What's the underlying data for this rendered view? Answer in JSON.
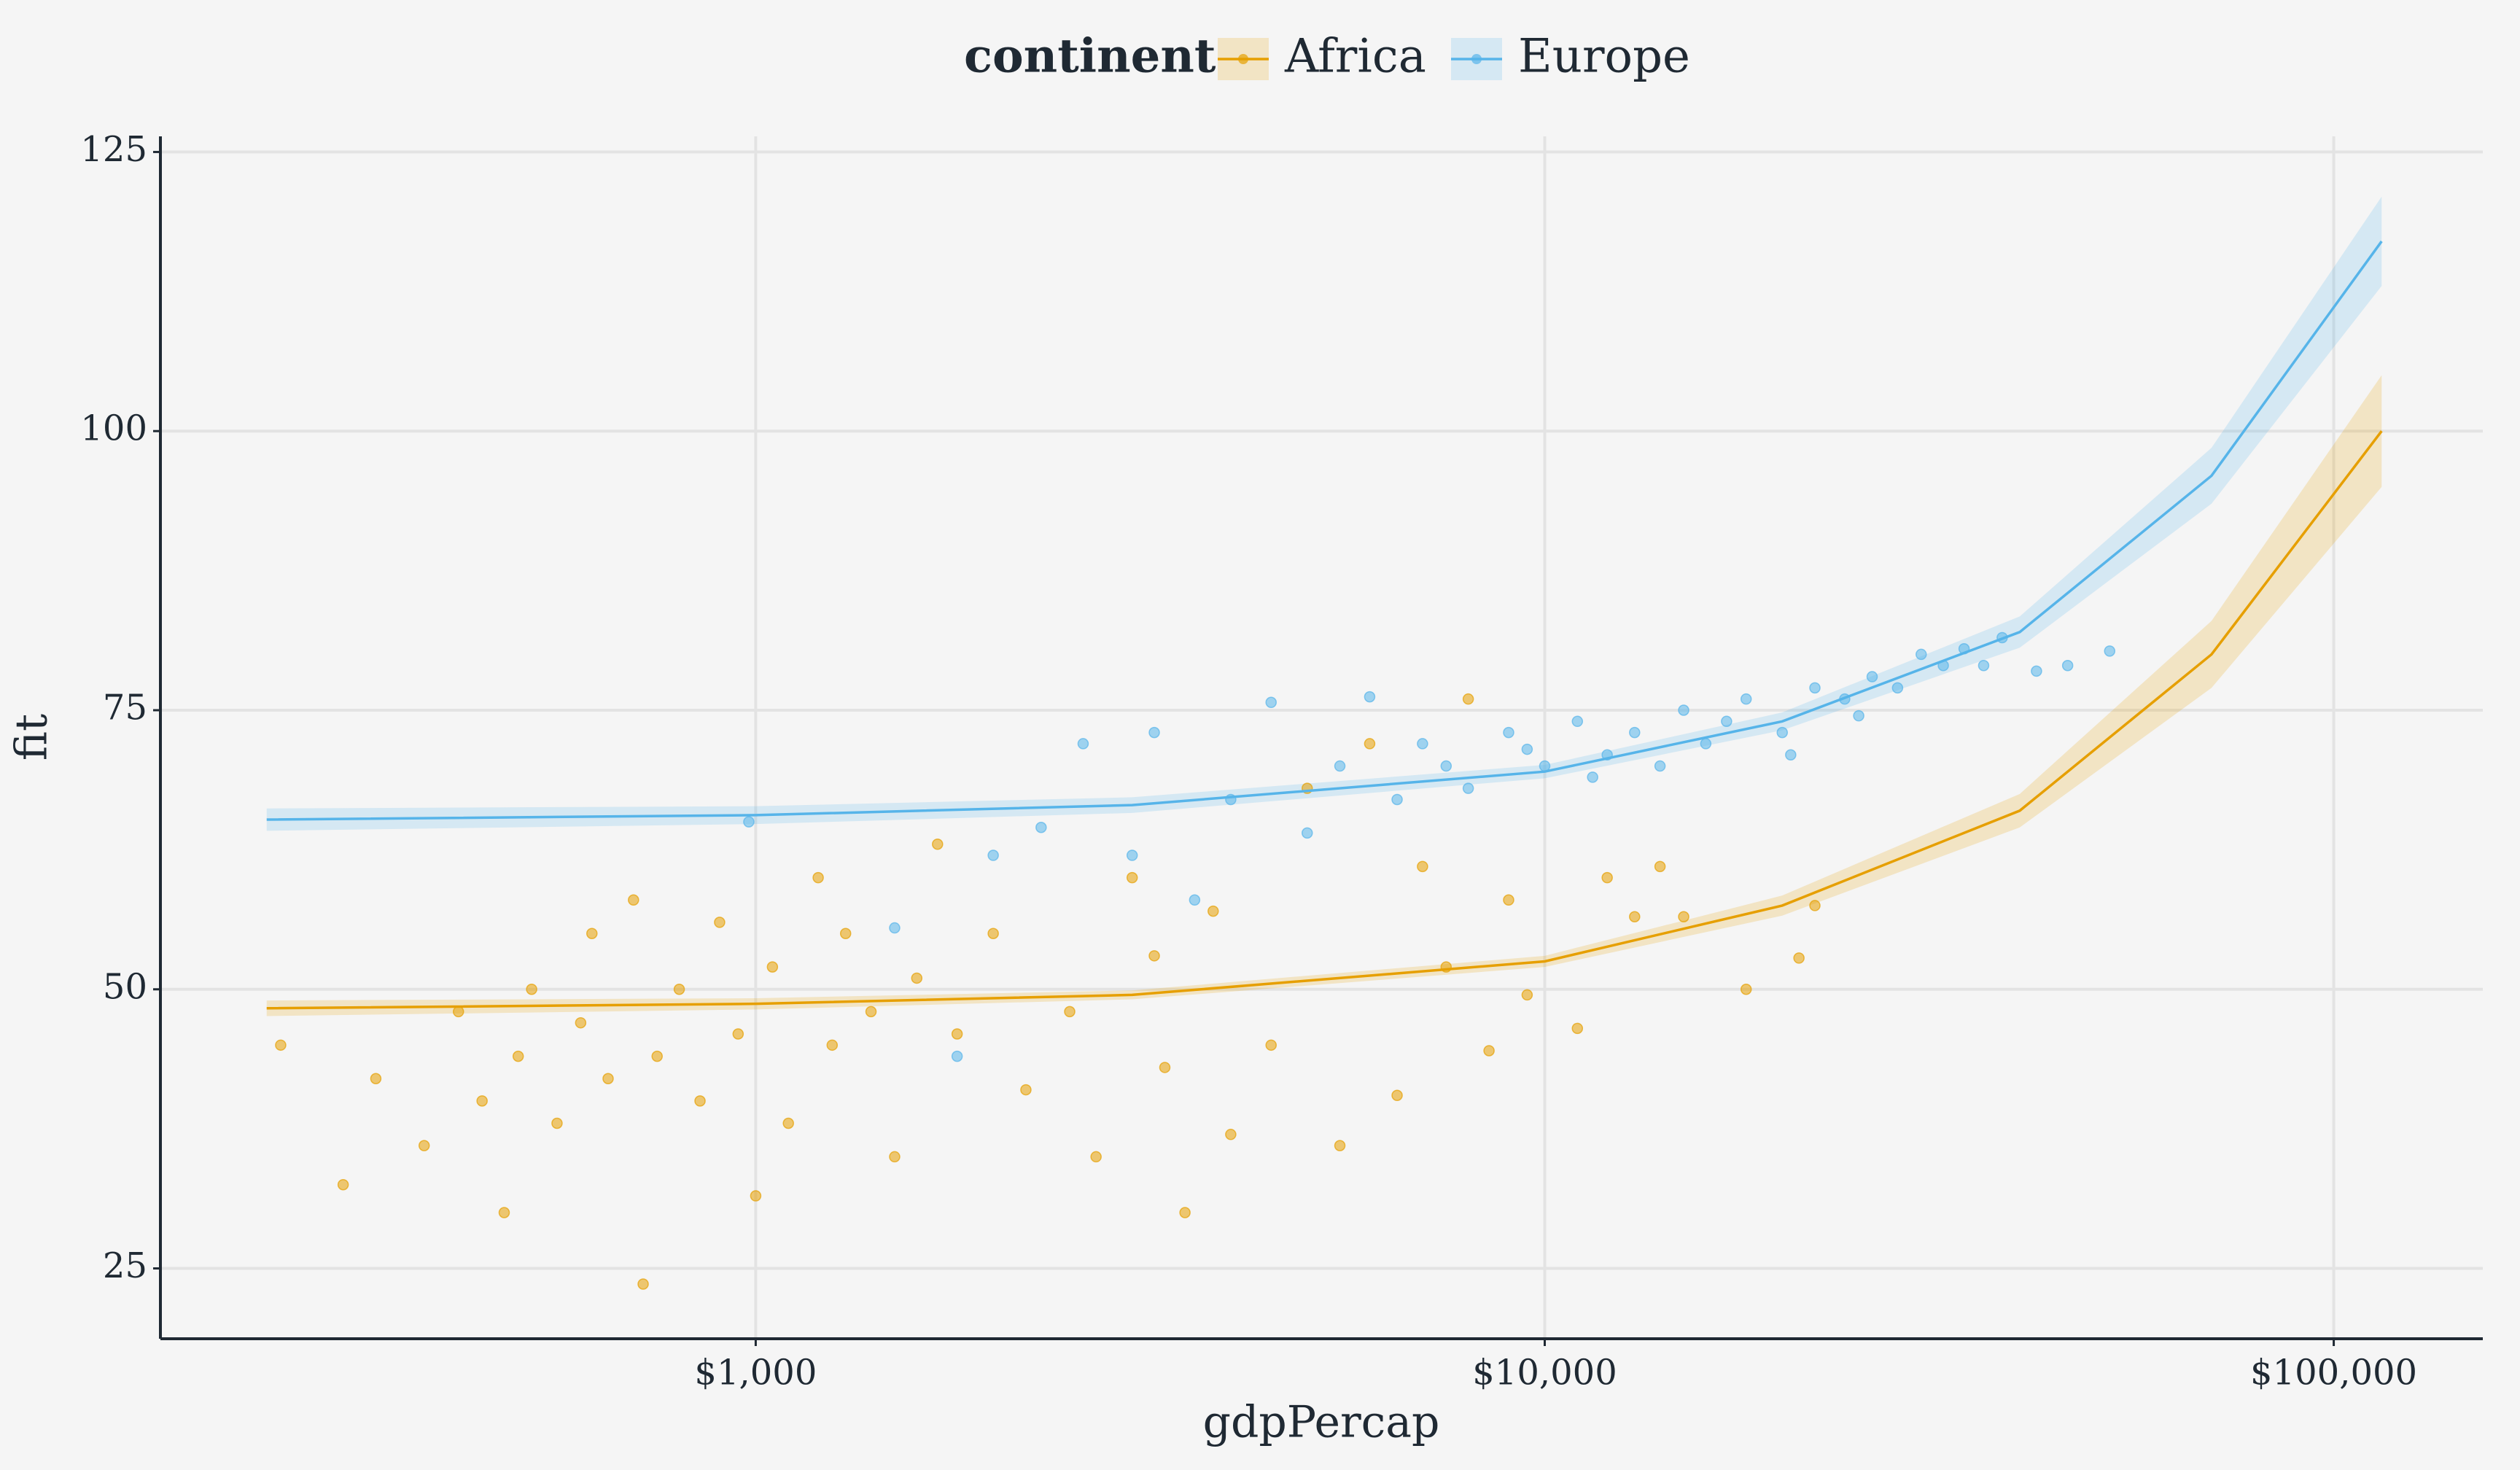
{
  "chart_data": {
    "type": "scatter",
    "x_label": "gdpPercap",
    "y_label": "fit",
    "legend_title": "continent",
    "x_log": true,
    "grid": true,
    "xlim": [
      176,
      154500
    ],
    "ylim": [
      18.7,
      126.4
    ],
    "xticks": [
      {
        "value": 1000,
        "label": "$1,000"
      },
      {
        "value": 10000,
        "label": "$10,000"
      },
      {
        "value": 100000,
        "label": "$100,000"
      }
    ],
    "yticks": [
      25,
      50,
      75,
      100,
      125
    ],
    "series": [
      {
        "name": "Africa",
        "color": "#e69f00",
        "x": [
          250,
          300,
          330,
          380,
          420,
          450,
          480,
          500,
          520,
          560,
          600,
          620,
          650,
          700,
          720,
          750,
          800,
          850,
          900,
          950,
          1000,
          1050,
          1100,
          1200,
          1250,
          1300,
          1400,
          1500,
          1600,
          1700,
          1800,
          2000,
          2200,
          2500,
          2700,
          3000,
          3300,
          3500,
          3800,
          4000,
          4500,
          5000,
          5500,
          6000,
          6500,
          7000,
          7500,
          8000,
          8500,
          9000,
          9500,
          11000,
          12000,
          13000,
          14000,
          15000,
          18000,
          21000,
          22000,
          3200
        ],
        "values": [
          45,
          32.5,
          42,
          36,
          48,
          40,
          30,
          44,
          50,
          38,
          47,
          55,
          42,
          58,
          23.6,
          44,
          50,
          40,
          56,
          46,
          31.5,
          52,
          38,
          60,
          45,
          55,
          48,
          35,
          51,
          63,
          46,
          55,
          41,
          48,
          35,
          60,
          43,
          30,
          57,
          37,
          45,
          68,
          36,
          72,
          40.5,
          61,
          52,
          76,
          44.5,
          58,
          49.5,
          46.5,
          60,
          56.5,
          61,
          56.5,
          50,
          52.8,
          57.5,
          53
        ],
        "fit": {
          "x": [
            240,
            1000,
            3000,
            10000,
            20000,
            40000,
            70000,
            115000
          ],
          "values": [
            48.3,
            48.7,
            49.5,
            52.5,
            57.5,
            66,
            80,
            100
          ],
          "lower": [
            47.6,
            48.2,
            49.1,
            52,
            56.6,
            64.5,
            77,
            95
          ],
          "upper": [
            49,
            49.2,
            49.9,
            53,
            58.4,
            67.5,
            83,
            105
          ]
        }
      },
      {
        "name": "Europe",
        "color": "#56b4e9",
        "x": [
          980,
          1500,
          1800,
          2000,
          2300,
          2600,
          3000,
          3200,
          3600,
          4000,
          4500,
          5000,
          5500,
          6000,
          6500,
          7000,
          7500,
          8000,
          9000,
          10000,
          11000,
          12000,
          13000,
          14000,
          15000,
          16000,
          18000,
          20000,
          22000,
          24000,
          26000,
          28000,
          30000,
          32000,
          34000,
          36000,
          38000,
          42000,
          46000,
          52000,
          20500,
          17000,
          25000,
          11500,
          9500
        ],
        "values": [
          65,
          55.5,
          44,
          62,
          64.5,
          72,
          62,
          73,
          58,
          67,
          75.7,
          64,
          70,
          76.2,
          67,
          72,
          70,
          68,
          73,
          70,
          74,
          71,
          73,
          70,
          75,
          72,
          76,
          73,
          77,
          76,
          78,
          77,
          80,
          79,
          80.5,
          79,
          81.5,
          78.5,
          79,
          80.3,
          71,
          74,
          74.5,
          69,
          71.5
        ],
        "fit": {
          "x": [
            240,
            1000,
            3000,
            10000,
            20000,
            40000,
            70000,
            115000
          ],
          "values": [
            65.2,
            65.6,
            66.5,
            69.5,
            74,
            82,
            96,
            117
          ],
          "lower": [
            64.2,
            64.8,
            65.8,
            68.9,
            73.2,
            80.6,
            93.5,
            113
          ],
          "upper": [
            66.2,
            66.4,
            67.2,
            70.1,
            74.8,
            83.4,
            98.5,
            121
          ]
        }
      }
    ]
  }
}
